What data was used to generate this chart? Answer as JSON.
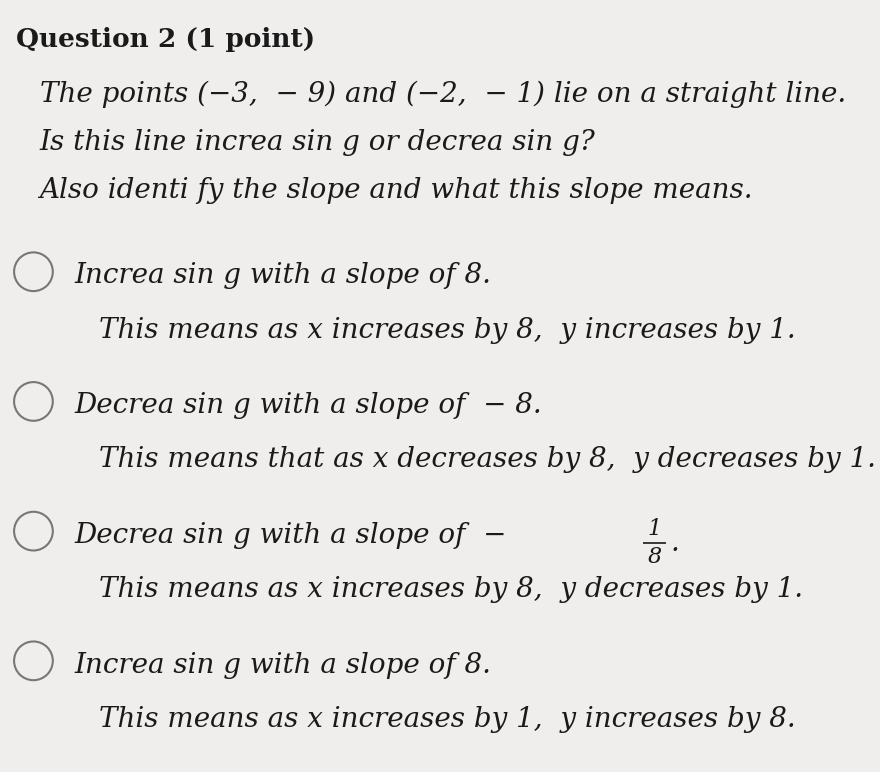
{
  "background_color": "#f0eeec",
  "title": "Question 2 (1 point)",
  "title_fontsize": 19,
  "prompt_lines": [
    "The points (−3,  − 9) and (−2,  − 1) lie on a straight line.",
    "Is this line increa sin g or decrea sin g?",
    "Also identi fy the slope and what this slope means."
  ],
  "options": [
    {
      "line1": "Increa sin g with a slope of 8.",
      "line2": "This means as x increases by 8,  y increases by 1.",
      "has_frac": false
    },
    {
      "line1": "Decrea sin g with a slope of  − 8.",
      "line2": "This means that as x decreases by 8,  y decreases by 1.",
      "has_frac": false
    },
    {
      "line1_pre": "Decrea sin g with a slope of  − ",
      "frac_num": "1",
      "frac_den": "8",
      "line1_post": ".",
      "line2": "This means as x increases by 8,  y decreases by 1.",
      "has_frac": true
    },
    {
      "line1": "Increa sin g with a slope of 8.",
      "line2": "This means as x increases by 1,  y increases by 8.",
      "has_frac": false
    }
  ],
  "prompt_fontsize": 20,
  "option_fontsize": 20,
  "text_color": "#1a1a1a",
  "circle_color": "#888888",
  "font_family": "DejaVu Serif"
}
